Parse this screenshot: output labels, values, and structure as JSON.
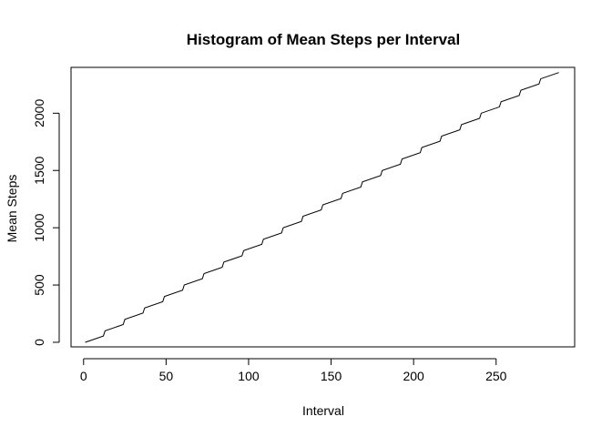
{
  "chart_data": {
    "type": "line",
    "title": "Histogram of Mean Steps per Interval",
    "xlabel": "Interval",
    "ylabel": "Mean Steps",
    "xlim": [
      -7.6,
      297.6
    ],
    "ylim": [
      -40,
      2400
    ],
    "x_ticks": [
      0,
      50,
      100,
      150,
      200,
      250
    ],
    "y_ticks": [
      0,
      500,
      1000,
      1500,
      2000
    ],
    "x_tick_labels": [
      "0",
      "50",
      "100",
      "150",
      "200",
      "250"
    ],
    "y_tick_labels": [
      "0",
      "500",
      "1000",
      "1500",
      "2000"
    ],
    "grid": false,
    "legend": "none",
    "line_color": "#000000",
    "series": [
      {
        "x_start": 1,
        "x_end": 288,
        "step_every": 12,
        "steps": [
          {
            "x": 1,
            "y": 0
          },
          {
            "x": 12,
            "y": 55
          },
          {
            "x": 13,
            "y": 100
          },
          {
            "x": 24,
            "y": 155
          },
          {
            "x": 25,
            "y": 200
          },
          {
            "x": 36,
            "y": 255
          },
          {
            "x": 37,
            "y": 300
          },
          {
            "x": 48,
            "y": 355
          },
          {
            "x": 49,
            "y": 400
          },
          {
            "x": 60,
            "y": 455
          },
          {
            "x": 61,
            "y": 500
          },
          {
            "x": 72,
            "y": 555
          },
          {
            "x": 73,
            "y": 600
          },
          {
            "x": 84,
            "y": 655
          },
          {
            "x": 85,
            "y": 700
          },
          {
            "x": 96,
            "y": 755
          },
          {
            "x": 97,
            "y": 800
          },
          {
            "x": 108,
            "y": 855
          },
          {
            "x": 109,
            "y": 900
          },
          {
            "x": 120,
            "y": 955
          },
          {
            "x": 121,
            "y": 1000
          },
          {
            "x": 132,
            "y": 1055
          },
          {
            "x": 133,
            "y": 1100
          },
          {
            "x": 144,
            "y": 1155
          },
          {
            "x": 145,
            "y": 1200
          },
          {
            "x": 156,
            "y": 1255
          },
          {
            "x": 157,
            "y": 1300
          },
          {
            "x": 168,
            "y": 1355
          },
          {
            "x": 169,
            "y": 1400
          },
          {
            "x": 180,
            "y": 1455
          },
          {
            "x": 181,
            "y": 1500
          },
          {
            "x": 192,
            "y": 1555
          },
          {
            "x": 193,
            "y": 1600
          },
          {
            "x": 204,
            "y": 1655
          },
          {
            "x": 205,
            "y": 1700
          },
          {
            "x": 216,
            "y": 1755
          },
          {
            "x": 217,
            "y": 1800
          },
          {
            "x": 228,
            "y": 1855
          },
          {
            "x": 229,
            "y": 1900
          },
          {
            "x": 240,
            "y": 1955
          },
          {
            "x": 241,
            "y": 2000
          },
          {
            "x": 252,
            "y": 2055
          },
          {
            "x": 253,
            "y": 2100
          },
          {
            "x": 264,
            "y": 2155
          },
          {
            "x": 265,
            "y": 2200
          },
          {
            "x": 276,
            "y": 2255
          },
          {
            "x": 277,
            "y": 2300
          },
          {
            "x": 288,
            "y": 2355
          }
        ]
      }
    ]
  }
}
